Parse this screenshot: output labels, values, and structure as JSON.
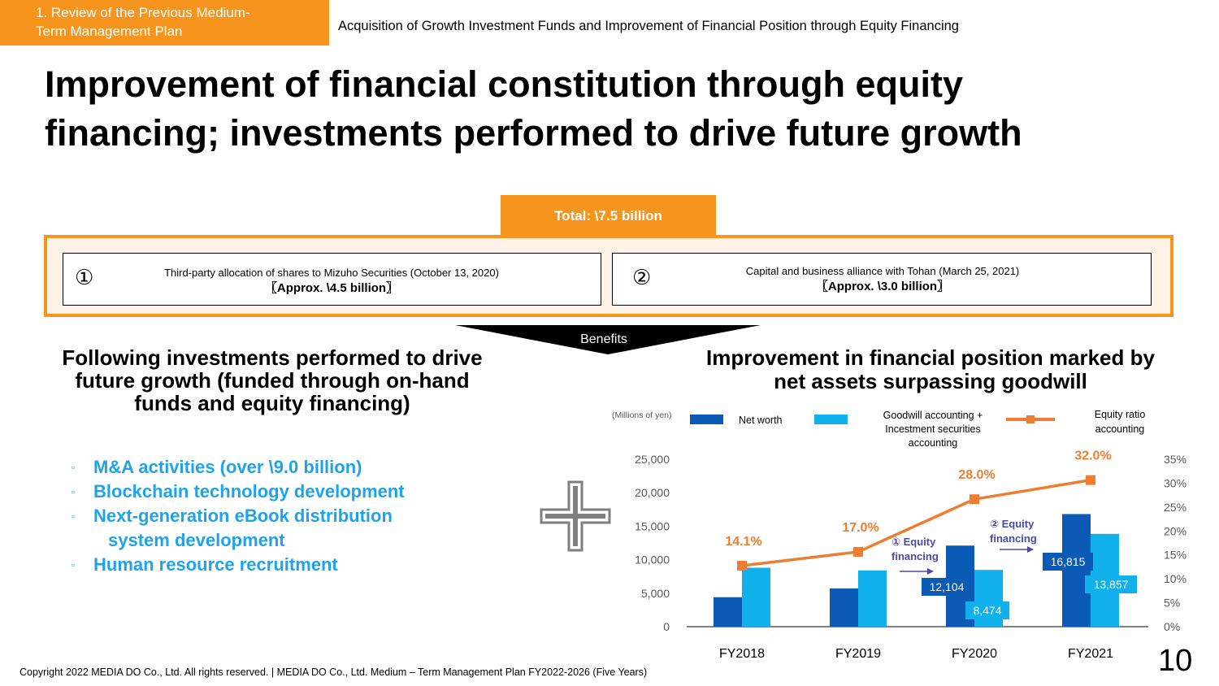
{
  "header": {
    "section_tag_line1": "1. Review of the Previous Medium-",
    "section_tag_line2": "Term Management Plan",
    "subtitle": "Acquisition of Growth Investment Funds and Improvement of Financial Position through Equity Financing"
  },
  "title": {
    "line1": "Improvement of financial constitution through equity",
    "line2": "financing; investments performed to drive future growth"
  },
  "total": {
    "label": "Total: \\7.5 billion"
  },
  "funding": [
    {
      "num": "①",
      "text": "Third-party allocation of shares to Mizuho Securities (October 13, 2020)",
      "amount": "〖Approx. \\4.5 billion〗"
    },
    {
      "num": "②",
      "text": "Capital and business alliance with Tohan (March 25, 2021)",
      "amount": "〖Approx. \\3.0 billion〗"
    }
  ],
  "benefits_label": "Benefits",
  "left": {
    "heading_line1": "Following investments performed to drive",
    "heading_line2": "future growth (funded through on-hand",
    "heading_line3": "funds and equity financing)",
    "bullets": [
      "M&A activities (over \\9.0 billion)",
      "Blockchain technology development",
      "Next-generation eBook distribution",
      "Human resource recruitment"
    ],
    "bullet3_cont": "system development",
    "bullet_marker": "▫"
  },
  "right": {
    "heading_line1": "Improvement in financial position marked by",
    "heading_line2": "net assets surpassing goodwill"
  },
  "chart_data": {
    "type": "bar+line",
    "unit_label": "(Millions of yen)",
    "categories": [
      "FY2018",
      "FY2019",
      "FY2020",
      "FY2021"
    ],
    "series": [
      {
        "name": "Net worth",
        "values": [
          4400,
          5700,
          12104,
          16815
        ],
        "color": "#0b5ab5",
        "value_labels": [
          "",
          "",
          "12,104",
          "16,815"
        ]
      },
      {
        "name": "Goodwill accounting + Incestment securities accounting",
        "values": [
          8800,
          8400,
          8474,
          13857
        ],
        "color": "#0fb0ec",
        "value_labels": [
          "",
          "",
          "8,474",
          "13,857"
        ]
      }
    ],
    "line": {
      "name": "Equity ratio accounting",
      "values": [
        14.1,
        17.0,
        28.0,
        32.0
      ],
      "labels": [
        "14.1%",
        "17.0%",
        "28.0%",
        "32.0%"
      ],
      "color": "#ed7d31"
    },
    "legend": {
      "net_worth": "Net worth",
      "goodwill_l1": "Goodwill accounting +",
      "goodwill_l2": "Incestment securities",
      "goodwill_l3": "accounting",
      "ratio_l1": "Equity ratio",
      "ratio_l2": "accounting"
    },
    "left_axis": {
      "min": 0,
      "max": 25000,
      "ticks": [
        "0",
        "5,000",
        "10,000",
        "15,000",
        "20,000",
        "25,000"
      ]
    },
    "right_axis": {
      "min": 0,
      "max": 35,
      "ticks": [
        "0%",
        "5%",
        "10%",
        "15%",
        "20%",
        "25%",
        "30%",
        "35%"
      ]
    },
    "annotations": [
      {
        "line1": "① Equity",
        "line2": "financing"
      },
      {
        "line1": "② Equity",
        "line2": "financing"
      }
    ]
  },
  "footer": "Copyright 2022 MEDIA DO Co., Ltd. All rights reserved. | MEDIA DO Co., Ltd. Medium – Term Management Plan FY2022-2026 (Five Years)",
  "page_number": "10"
}
